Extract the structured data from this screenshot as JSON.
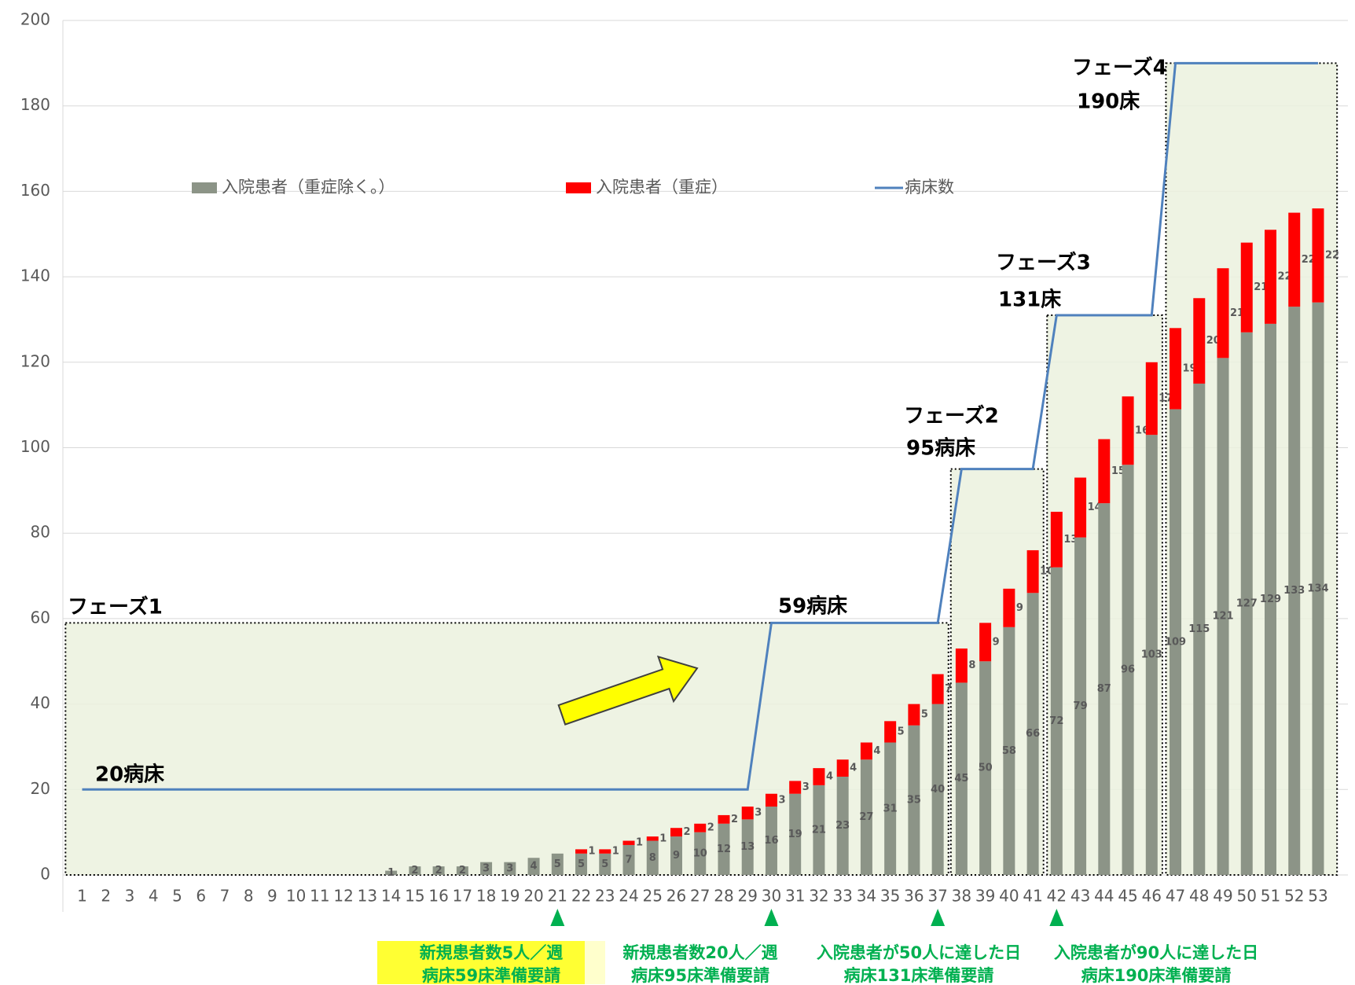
{
  "chart_data": {
    "type": "bar",
    "categories": [
      1,
      2,
      3,
      4,
      5,
      6,
      7,
      8,
      9,
      10,
      11,
      12,
      13,
      14,
      15,
      16,
      17,
      18,
      19,
      20,
      21,
      22,
      23,
      24,
      25,
      26,
      27,
      28,
      29,
      30,
      31,
      32,
      33,
      34,
      35,
      36,
      37,
      38,
      39,
      40,
      41,
      42,
      43,
      44,
      45,
      46,
      47,
      48,
      49,
      50,
      51,
      52,
      53
    ],
    "series": [
      {
        "name": "入院患者（重症除く。）",
        "color": "#8c9487",
        "values": [
          null,
          null,
          null,
          null,
          null,
          null,
          null,
          null,
          null,
          null,
          null,
          null,
          null,
          1,
          2,
          2,
          2,
          3,
          3,
          4,
          5,
          5,
          5,
          7,
          8,
          9,
          10,
          12,
          13,
          16,
          19,
          21,
          23,
          27,
          31,
          35,
          40,
          45,
          50,
          58,
          66,
          72,
          79,
          87,
          96,
          103,
          109,
          115,
          121,
          127,
          129,
          133,
          134
        ]
      },
      {
        "name": "入院患者（重症）",
        "color": "#ff0000",
        "values": [
          null,
          null,
          null,
          null,
          null,
          null,
          null,
          null,
          null,
          null,
          null,
          null,
          null,
          null,
          null,
          null,
          null,
          null,
          null,
          null,
          null,
          1,
          1,
          1,
          1,
          2,
          2,
          2,
          3,
          3,
          3,
          4,
          4,
          4,
          5,
          5,
          7,
          8,
          9,
          9,
          10,
          13,
          14,
          15,
          16,
          17,
          19,
          20,
          21,
          21,
          22,
          22,
          22
        ]
      },
      {
        "name": "病床数",
        "type": "line",
        "color": "#4f81bd",
        "values": [
          20,
          20,
          20,
          20,
          20,
          20,
          20,
          20,
          20,
          20,
          20,
          20,
          20,
          20,
          20,
          20,
          20,
          20,
          20,
          20,
          20,
          20,
          20,
          20,
          20,
          20,
          20,
          20,
          20,
          59,
          59,
          59,
          59,
          59,
          59,
          59,
          59,
          95,
          95,
          95,
          95,
          131,
          131,
          131,
          131,
          131,
          190,
          190,
          190,
          190,
          190,
          190,
          190
        ]
      }
    ],
    "ylim": [
      0,
      200
    ],
    "yticks": [
      0,
      20,
      40,
      60,
      80,
      100,
      120,
      140,
      160,
      180,
      200
    ],
    "grid": true,
    "annotations": [
      "フェーズ1",
      "20病床",
      "59病床",
      "フェーズ2",
      "95病床",
      "フェーズ3",
      "131床",
      "フェーズ4",
      "190床"
    ],
    "notes": [
      [
        "新規患者数5人／週",
        "病床59床準備要請"
      ],
      [
        "新規患者数20人／週",
        "病床95床準備要請"
      ],
      [
        "入院患者が50人に達した日",
        "病床131床準備要請"
      ],
      [
        "入院患者が90人に達した日",
        "病床190床準備要請"
      ]
    ]
  }
}
